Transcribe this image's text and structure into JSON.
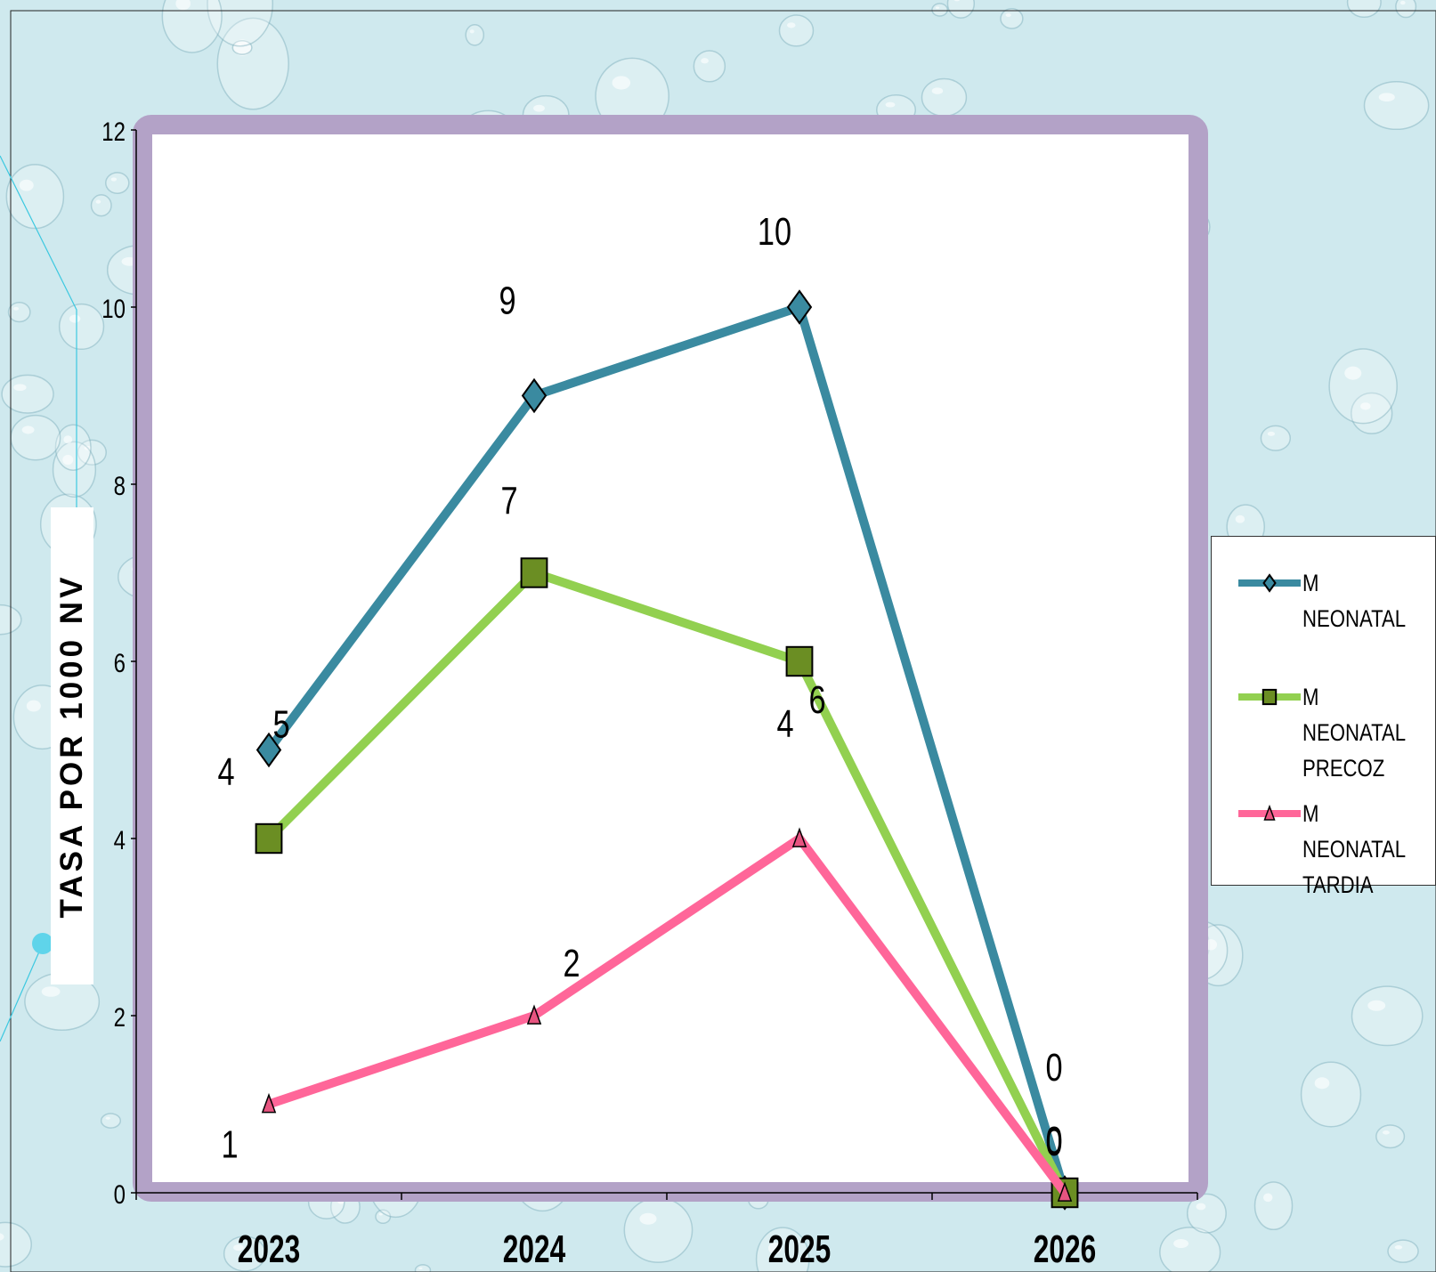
{
  "chart_data": {
    "type": "line",
    "title": "",
    "xlabel": "",
    "ylabel": "TASA POR 1000 NV",
    "categories": [
      "2023",
      "2024",
      "2025",
      "2026"
    ],
    "ylim": [
      0,
      12
    ],
    "yticks": [
      "0",
      "2",
      "4",
      "6",
      "8",
      "10",
      "12"
    ],
    "grid": false,
    "legend_position": "right",
    "series": [
      {
        "name": "M NEONATAL",
        "values": [
          5,
          9,
          10,
          0
        ],
        "color": "#3a8aa0",
        "marker": "diamond",
        "marker_color": "#3a8aa0",
        "data_labels": [
          "5",
          "9",
          "10",
          "0"
        ]
      },
      {
        "name": "M NEONATAL PRECOZ",
        "values": [
          4,
          7,
          6,
          0
        ],
        "color": "#92d050",
        "marker": "square",
        "marker_color": "#6b8e23",
        "data_labels": [
          "4",
          "7",
          "6",
          "0"
        ]
      },
      {
        "name": "M NEONATAL TARDIA",
        "values": [
          1,
          2,
          4,
          0
        ],
        "color": "#ff6699",
        "marker": "triangle",
        "marker_color": "#e75480",
        "data_labels": [
          "1",
          "2",
          "4",
          "0"
        ]
      }
    ],
    "legend": [
      {
        "label": "M NEONATAL",
        "lines": "M NEONATAL"
      },
      {
        "label": "M NEONATAL PRECOZ",
        "lines": "M NEONATAL\nPRECOZ"
      },
      {
        "label": "M NEONATAL TARDIA",
        "lines": "M NEONATAL\nTARDIA"
      }
    ]
  },
  "colors": {
    "background": "#cfe9ee",
    "plot_frame": "#b3a2c7",
    "plot_area": "#ffffff"
  }
}
